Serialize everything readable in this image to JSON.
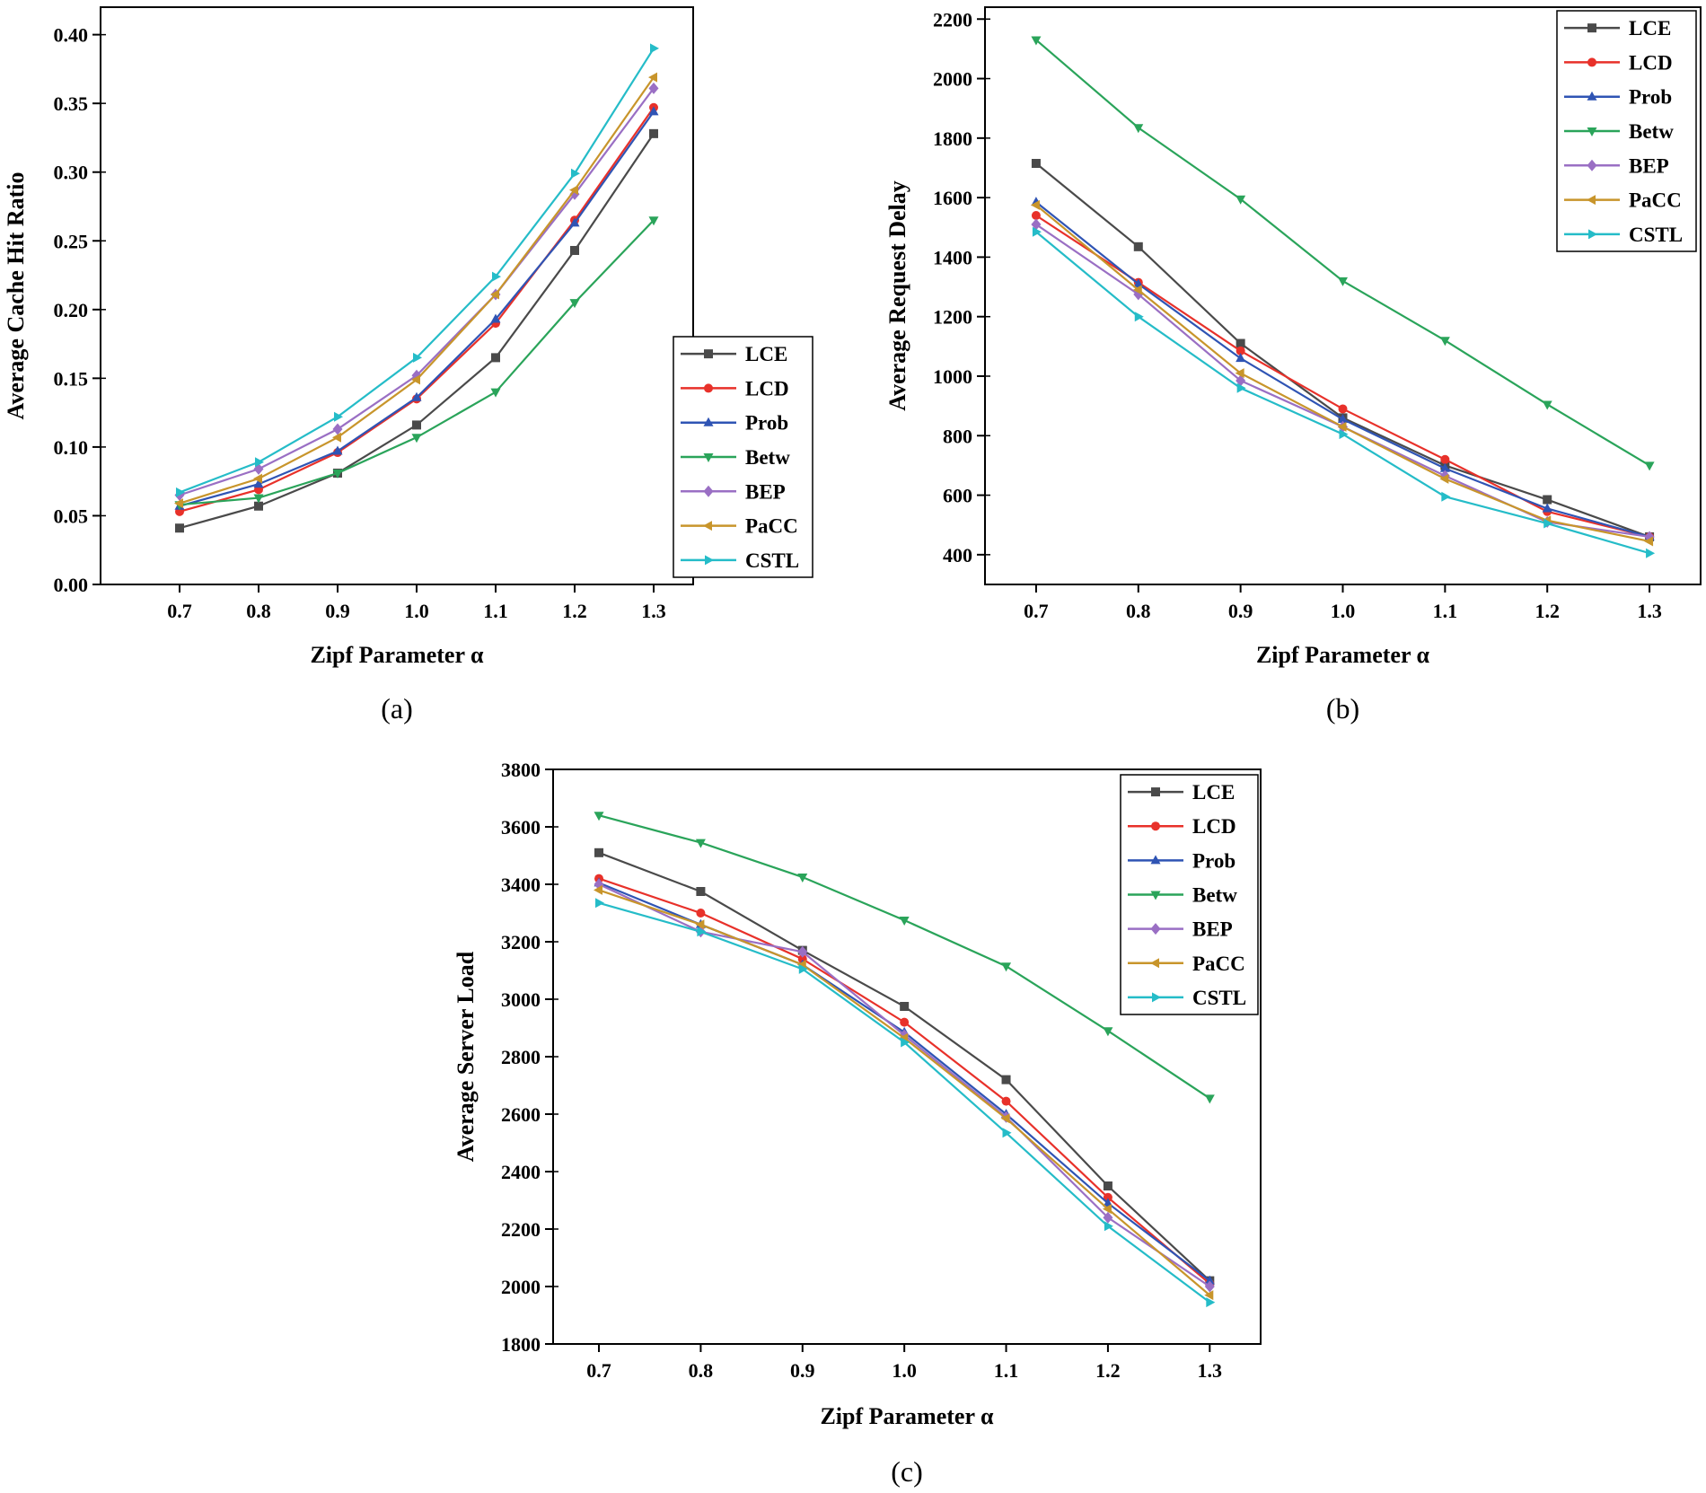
{
  "series_styles": [
    {
      "name": "LCE",
      "color": "#4a4a4a",
      "marker": "square"
    },
    {
      "name": "LCD",
      "color": "#e8312a",
      "marker": "circle"
    },
    {
      "name": "Prob",
      "color": "#2f54b4",
      "marker": "triangle-up"
    },
    {
      "name": "Betw",
      "color": "#2aa45a",
      "marker": "triangle-down"
    },
    {
      "name": "BEP",
      "color": "#9a6fc4",
      "marker": "diamond"
    },
    {
      "name": "PaCC",
      "color": "#c8952b",
      "marker": "triangle-left"
    },
    {
      "name": "CSTL",
      "color": "#25bcc8",
      "marker": "triangle-right"
    }
  ],
  "chart_data": [
    {
      "type": "line",
      "caption": "(a)",
      "xlabel": "Zipf Parameter α",
      "ylabel": "Average Cache Hit Ratio",
      "x": [
        0.7,
        0.8,
        0.9,
        1.0,
        1.1,
        1.2,
        1.3
      ],
      "x_tick_labels": [
        "0.7",
        "0.8",
        "0.9",
        "1.0",
        "1.1",
        "1.2",
        "1.3"
      ],
      "xlim": [
        0.6,
        1.35
      ],
      "ylim": [
        0.0,
        0.42
      ],
      "y_ticks": [
        0.0,
        0.05,
        0.1,
        0.15,
        0.2,
        0.25,
        0.3,
        0.35,
        0.4
      ],
      "y_tick_labels": [
        "0.00",
        "0.05",
        "0.10",
        "0.15",
        "0.20",
        "0.25",
        "0.30",
        "0.35",
        "0.40"
      ],
      "legend_position": "bottom-right",
      "grid": false,
      "series": [
        {
          "name": "LCE",
          "values": [
            0.041,
            0.057,
            0.081,
            0.116,
            0.165,
            0.243,
            0.328
          ]
        },
        {
          "name": "LCD",
          "values": [
            0.053,
            0.069,
            0.096,
            0.135,
            0.19,
            0.265,
            0.347
          ]
        },
        {
          "name": "Prob",
          "values": [
            0.057,
            0.073,
            0.097,
            0.136,
            0.193,
            0.263,
            0.344
          ]
        },
        {
          "name": "Betw",
          "values": [
            0.058,
            0.063,
            0.081,
            0.107,
            0.14,
            0.205,
            0.265
          ]
        },
        {
          "name": "BEP",
          "values": [
            0.065,
            0.084,
            0.113,
            0.152,
            0.211,
            0.284,
            0.361
          ]
        },
        {
          "name": "PaCC",
          "values": [
            0.059,
            0.077,
            0.107,
            0.149,
            0.211,
            0.287,
            0.369
          ]
        },
        {
          "name": "CSTL",
          "values": [
            0.067,
            0.089,
            0.122,
            0.165,
            0.224,
            0.299,
            0.39
          ]
        }
      ]
    },
    {
      "type": "line",
      "caption": "(b)",
      "xlabel": "Zipf Parameter α",
      "ylabel": "Average Request Delay",
      "x": [
        0.7,
        0.8,
        0.9,
        1.0,
        1.1,
        1.2,
        1.3
      ],
      "x_tick_labels": [
        "0.7",
        "0.8",
        "0.9",
        "1.0",
        "1.1",
        "1.2",
        "1.3"
      ],
      "xlim": [
        0.65,
        1.35
      ],
      "ylim": [
        300,
        2240
      ],
      "y_ticks": [
        400,
        600,
        800,
        1000,
        1200,
        1400,
        1600,
        1800,
        2000,
        2200
      ],
      "y_tick_labels": [
        "400",
        "600",
        "800",
        "1000",
        "1200",
        "1400",
        "1600",
        "1800",
        "2000",
        "2200"
      ],
      "legend_position": "top-right",
      "grid": false,
      "series": [
        {
          "name": "LCE",
          "values": [
            1715,
            1435,
            1110,
            860,
            700,
            585,
            460
          ]
        },
        {
          "name": "LCD",
          "values": [
            1540,
            1315,
            1085,
            890,
            720,
            545,
            460
          ]
        },
        {
          "name": "Prob",
          "values": [
            1585,
            1310,
            1060,
            855,
            690,
            555,
            460
          ]
        },
        {
          "name": "Betw",
          "values": [
            2130,
            1835,
            1595,
            1320,
            1120,
            905,
            700
          ]
        },
        {
          "name": "BEP",
          "values": [
            1510,
            1275,
            985,
            830,
            665,
            510,
            460
          ]
        },
        {
          "name": "PaCC",
          "values": [
            1575,
            1290,
            1010,
            830,
            655,
            515,
            445
          ]
        },
        {
          "name": "CSTL",
          "values": [
            1485,
            1200,
            960,
            805,
            595,
            505,
            405
          ]
        }
      ]
    },
    {
      "type": "line",
      "caption": "(c)",
      "xlabel": "Zipf Parameter α",
      "ylabel": "Average Server Load",
      "x": [
        0.7,
        0.8,
        0.9,
        1.0,
        1.1,
        1.2,
        1.3
      ],
      "x_tick_labels": [
        "0.7",
        "0.8",
        "0.9",
        "1.0",
        "1.1",
        "1.2",
        "1.3"
      ],
      "xlim": [
        0.655,
        1.35
      ],
      "ylim": [
        1800,
        3800
      ],
      "y_ticks": [
        1800,
        2000,
        2200,
        2400,
        2600,
        2800,
        3000,
        3200,
        3400,
        3600,
        3800
      ],
      "y_tick_labels": [
        "1800",
        "2000",
        "2200",
        "2400",
        "2600",
        "2800",
        "3000",
        "3200",
        "3400",
        "3600",
        "3800"
      ],
      "legend_position": "top-right",
      "grid": false,
      "series": [
        {
          "name": "LCE",
          "values": [
            3510,
            3375,
            3170,
            2975,
            2720,
            2350,
            2020
          ]
        },
        {
          "name": "LCD",
          "values": [
            3420,
            3300,
            3140,
            2920,
            2645,
            2310,
            2010
          ]
        },
        {
          "name": "Prob",
          "values": [
            3405,
            3260,
            3120,
            2885,
            2600,
            2290,
            2020
          ]
        },
        {
          "name": "Betw",
          "values": [
            3640,
            3545,
            3425,
            3275,
            3115,
            2890,
            2655
          ]
        },
        {
          "name": "BEP",
          "values": [
            3400,
            3235,
            3165,
            2875,
            2590,
            2240,
            2000
          ]
        },
        {
          "name": "PaCC",
          "values": [
            3380,
            3260,
            3120,
            2865,
            2585,
            2270,
            1970
          ]
        },
        {
          "name": "CSTL",
          "values": [
            3335,
            3235,
            3105,
            2850,
            2535,
            2210,
            1945
          ]
        }
      ]
    }
  ]
}
